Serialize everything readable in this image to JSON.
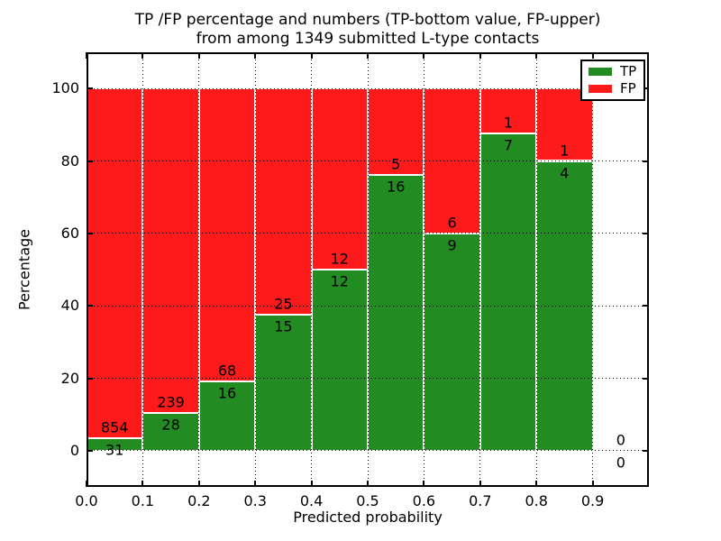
{
  "figure": {
    "title_line1": "TP /FP percentage and numbers (TP-bottom value, FP-upper)",
    "title_line2": "from among 1349 submitted L-type contacts"
  },
  "chart_data": {
    "type": "bar",
    "variant": "stacked-percentage-histogram",
    "title": "TP /FP percentage and numbers (TP-bottom value, FP-upper)\nfrom among 1349 submitted L-type contacts",
    "xlabel": "Predicted probability",
    "ylabel": "Percentage",
    "total_contacts": 1349,
    "xlim": [
      0.0,
      1.0
    ],
    "ylim": [
      -10,
      110
    ],
    "x_tick_values": [
      0.0,
      0.1,
      0.2,
      0.3,
      0.4,
      0.5,
      0.6,
      0.7,
      0.8,
      0.9
    ],
    "x_tick_labels": [
      "0.0",
      "0.1",
      "0.2",
      "0.3",
      "0.4",
      "0.5",
      "0.6",
      "0.7",
      "0.8",
      "0.9"
    ],
    "y_tick_values": [
      0,
      20,
      40,
      60,
      80,
      100
    ],
    "y_tick_labels": [
      "0",
      "20",
      "40",
      "60",
      "80",
      "100"
    ],
    "grid": "dotted",
    "grid_color": "#000000",
    "bar_edge_color": "#ffffff",
    "bins": [
      {
        "start": 0.0,
        "end": 0.1,
        "tp": 31,
        "fp": 854,
        "tp_percent": 3.5
      },
      {
        "start": 0.1,
        "end": 0.2,
        "tp": 28,
        "fp": 239,
        "tp_percent": 10.49
      },
      {
        "start": 0.2,
        "end": 0.3,
        "tp": 16,
        "fp": 68,
        "tp_percent": 19.05
      },
      {
        "start": 0.3,
        "end": 0.4,
        "tp": 15,
        "fp": 25,
        "tp_percent": 37.5
      },
      {
        "start": 0.4,
        "end": 0.5,
        "tp": 12,
        "fp": 12,
        "tp_percent": 50.0
      },
      {
        "start": 0.5,
        "end": 0.6,
        "tp": 16,
        "fp": 5,
        "tp_percent": 76.19
      },
      {
        "start": 0.6,
        "end": 0.7,
        "tp": 9,
        "fp": 6,
        "tp_percent": 60.0
      },
      {
        "start": 0.7,
        "end": 0.8,
        "tp": 7,
        "fp": 1,
        "tp_percent": 87.5
      },
      {
        "start": 0.8,
        "end": 0.9,
        "tp": 4,
        "fp": 1,
        "tp_percent": 80.0
      },
      {
        "start": 0.9,
        "end": 1.0,
        "tp": 0,
        "fp": 0,
        "tp_percent": 0.0
      }
    ],
    "series": [
      {
        "name": "TP",
        "color": "#228b22",
        "values": [
          31,
          28,
          16,
          15,
          12,
          16,
          9,
          7,
          4,
          0
        ]
      },
      {
        "name": "FP",
        "color": "#fc1a1a",
        "values": [
          854,
          239,
          68,
          25,
          12,
          5,
          6,
          1,
          1,
          0
        ]
      }
    ],
    "legend": {
      "position": "upper-right",
      "entries": [
        {
          "label": "TP",
          "color": "#228b22"
        },
        {
          "label": "FP",
          "color": "#fc1a1a"
        }
      ]
    }
  }
}
